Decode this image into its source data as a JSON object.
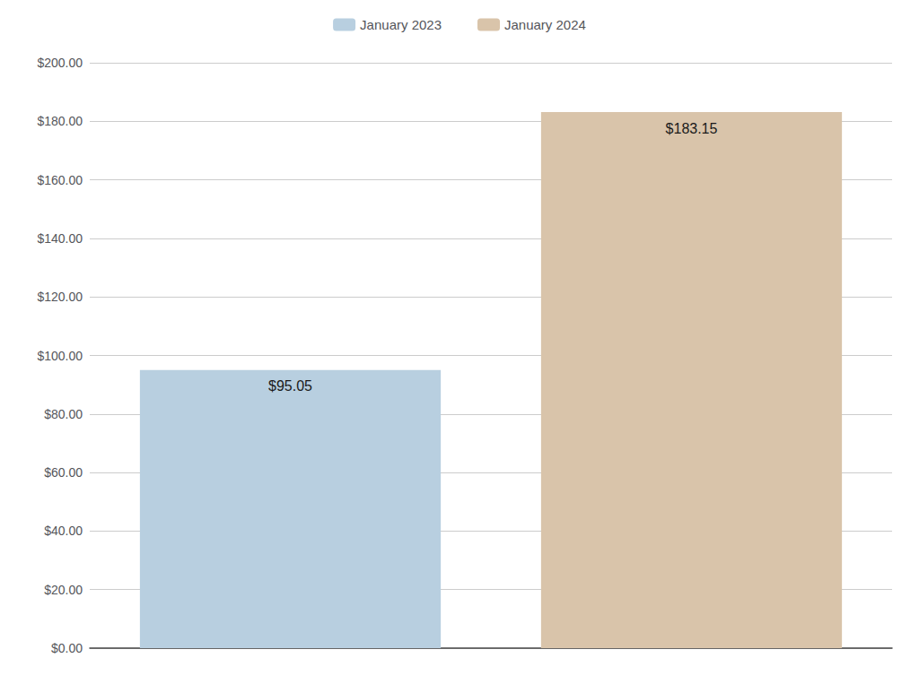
{
  "chart_data": {
    "type": "bar",
    "categories": [
      "January 2023",
      "January 2024"
    ],
    "values": [
      95.05,
      183.15
    ],
    "value_labels": [
      "$95.05",
      "$183.15"
    ],
    "colors": [
      "#b8cfe0",
      "#d9c4aa"
    ],
    "data_labels": true,
    "ylim": [
      0,
      200
    ],
    "yticks": [
      {
        "value": 0,
        "label": "$0.00"
      },
      {
        "value": 20,
        "label": "$20.00"
      },
      {
        "value": 40,
        "label": "$40.00"
      },
      {
        "value": 60,
        "label": "$60.00"
      },
      {
        "value": 80,
        "label": "$80.00"
      },
      {
        "value": 100,
        "label": "$100.00"
      },
      {
        "value": 120,
        "label": "$120.00"
      },
      {
        "value": 140,
        "label": "$140.00"
      },
      {
        "value": 160,
        "label": "$160.00"
      },
      {
        "value": 180,
        "label": "$180.00"
      },
      {
        "value": 200,
        "label": "$200.00"
      }
    ],
    "grid": true,
    "legend": "top",
    "tick_labels": "y"
  }
}
